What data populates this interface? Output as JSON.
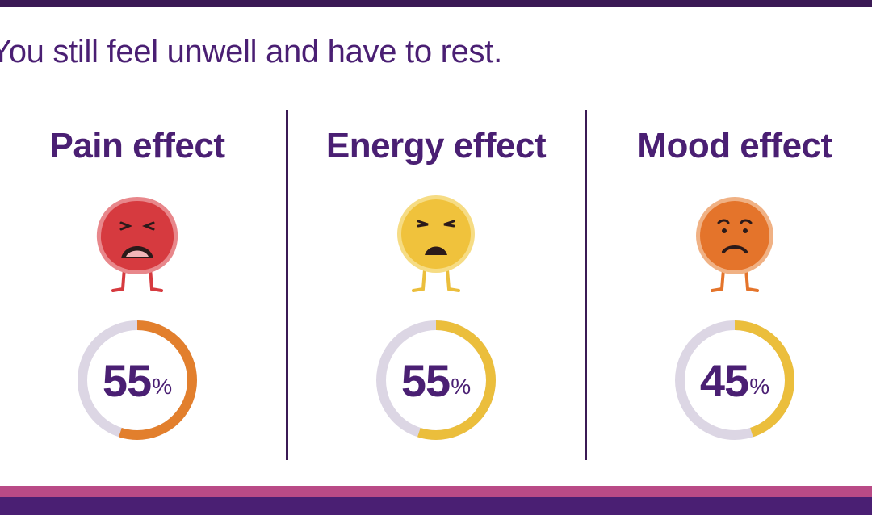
{
  "headline": "You still feel unwell and have to rest.",
  "effects": [
    {
      "title": "Pain effect",
      "face": "red-grimacing-face-icon",
      "percent": 55,
      "percent_label": "55",
      "unit": "%",
      "face_color": "#d63a3f",
      "ring_color": "#e27f2d"
    },
    {
      "title": "Energy effect",
      "face": "yellow-unhappy-face-icon",
      "percent": 55,
      "percent_label": "55",
      "unit": "%",
      "face_color": "#f0c23c",
      "ring_color": "#ebbe3c"
    },
    {
      "title": "Mood effect",
      "face": "orange-sad-face-icon",
      "percent": 45,
      "percent_label": "45",
      "unit": "%",
      "face_color": "#e4742b",
      "ring_color": "#ebbe3c"
    }
  ],
  "colors": {
    "brand_purple": "#4a1f73",
    "dark_purple": "#3b1a55",
    "accent_pink": "#b94a86",
    "ring_track": "#dcd6e4"
  }
}
